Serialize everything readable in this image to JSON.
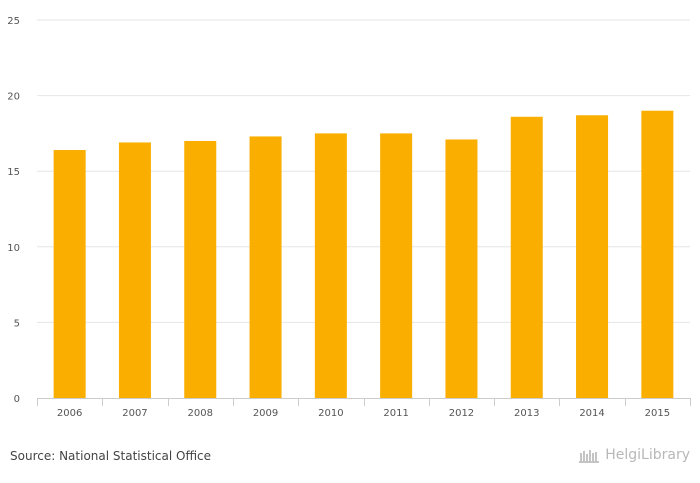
{
  "chart_data": {
    "type": "bar",
    "categories": [
      "2006",
      "2007",
      "2008",
      "2009",
      "2010",
      "2011",
      "2012",
      "2013",
      "2014",
      "2015"
    ],
    "values": [
      16.4,
      16.9,
      17.0,
      17.3,
      17.5,
      17.5,
      17.1,
      18.6,
      18.7,
      19.0
    ],
    "title": "",
    "xlabel": "",
    "ylabel": "",
    "ylim": [
      0,
      25
    ],
    "yticks": [
      0,
      5,
      10,
      15,
      20,
      25
    ],
    "grid": true,
    "bar_color": "#f9ae00"
  },
  "footer": {
    "source": "Source: National Statistical Office",
    "brand": "HelgiLibrary"
  },
  "colors": {
    "grid": "#e6e6e6",
    "axis": "#cccccc",
    "text": "#555555"
  }
}
